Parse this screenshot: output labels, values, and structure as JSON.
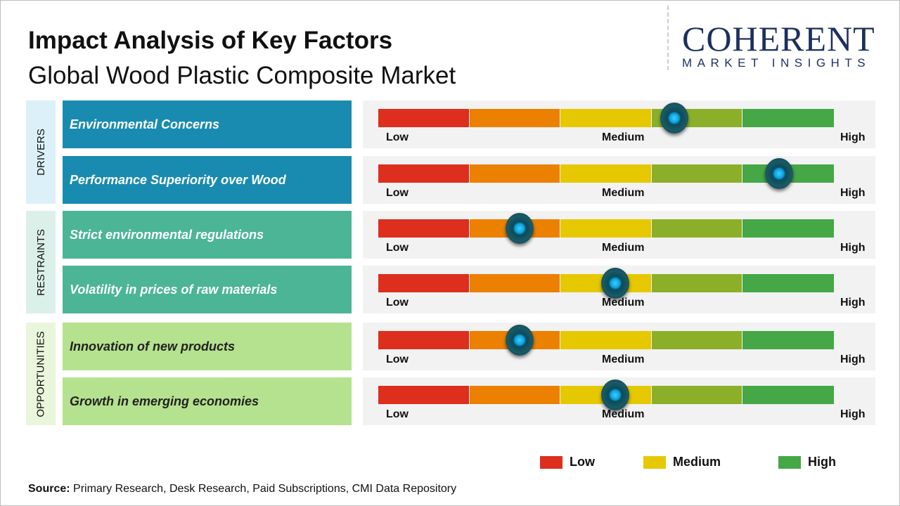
{
  "title": "Impact Analysis of Key Factors",
  "subtitle": "Global Wood Plastic Composite Market",
  "logo": {
    "line1": "COHERENT",
    "line2": "MARKET INSIGHTS"
  },
  "chart_data": {
    "type": "gauge",
    "scale_labels": [
      "Low",
      "Medium",
      "High"
    ],
    "segment_colors": [
      "#dd2e1e",
      "#ec8000",
      "#e6c800",
      "#8caf2a",
      "#45a745"
    ],
    "categories": [
      {
        "name": "DRIVERS",
        "bg": "#dcf0f8",
        "color": "#1a8bb0",
        "factors": [
          {
            "label": "Environmental Concerns",
            "value": 0.65
          },
          {
            "label": "Performance Superiority over Wood",
            "value": 0.88
          }
        ]
      },
      {
        "name": "RESTRAINTS",
        "bg": "#dcf0ea",
        "color": "#4bb596",
        "factors": [
          {
            "label": "Strict environmental regulations",
            "value": 0.31
          },
          {
            "label": "Volatility in prices of raw materials",
            "value": 0.52
          }
        ]
      },
      {
        "name": "OPPORTUNITIES",
        "bg": "#e9f6dc",
        "color": "#b5e28e",
        "factors": [
          {
            "label": "Innovation of new products",
            "value": 0.31
          },
          {
            "label": "Growth in emerging economies",
            "value": 0.52
          }
        ]
      }
    ],
    "legend": [
      {
        "label": "Low",
        "color": "#dd2e1e"
      },
      {
        "label": "Medium",
        "color": "#e6c800"
      },
      {
        "label": "High",
        "color": "#45a745"
      }
    ]
  },
  "source": {
    "label": "Source:",
    "text": " Primary Research, Desk Research, Paid Subscriptions, CMI Data Repository"
  }
}
